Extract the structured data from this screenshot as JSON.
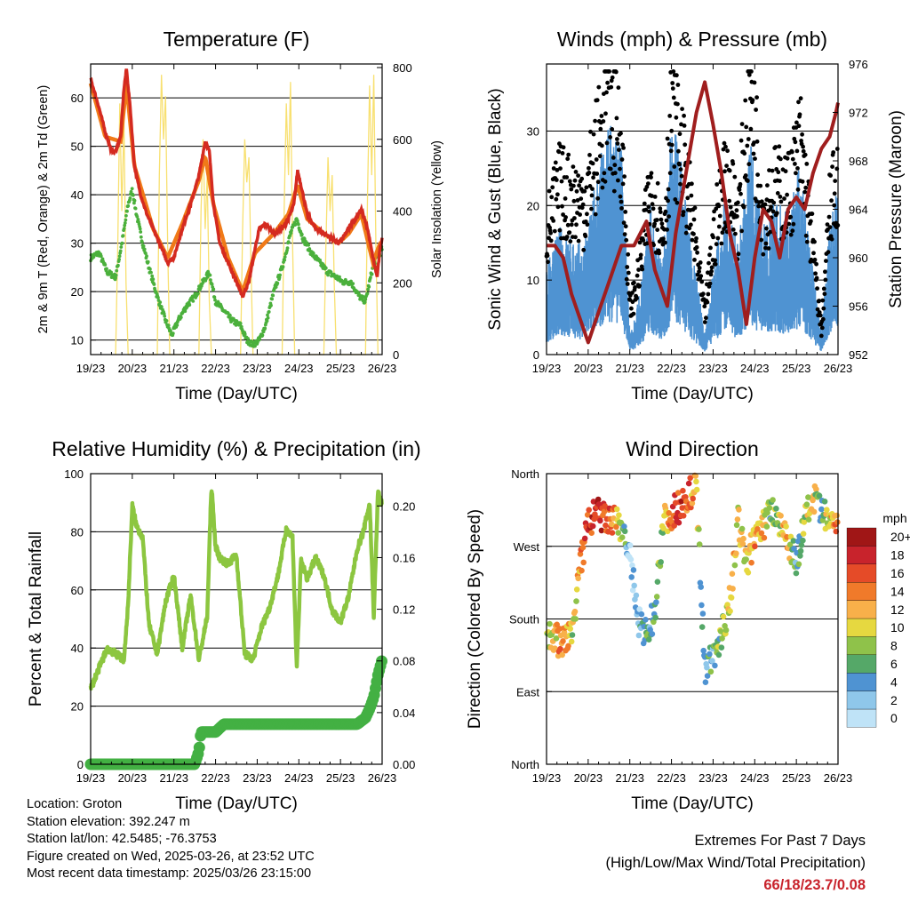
{
  "panels": {
    "temperature": {
      "title": "Temperature (F)",
      "ylabel_left": "2m & 9m T (Red, Orange) & 2m Td (Green)",
      "ylabel_right": "Solar Insolation (Yellow)",
      "xlabel": "Time (Day/UTC)"
    },
    "wind": {
      "title": "Winds (mph) & Pressure (mb)",
      "ylabel_left": "Sonic Wind & Gust (Blue, Black)",
      "ylabel_right": "Station Pressure (Maroon)",
      "xlabel": "Time (Day/UTC)"
    },
    "humidity": {
      "title": "Relative Humidity (%) & Precipitation (in)",
      "ylabel_left": "Percent & Total Rainfall",
      "xlabel": "Time (Day/UTC)"
    },
    "direction": {
      "title": "Wind Direction",
      "ylabel_left": "Direction (Colored By Speed)",
      "xlabel": "Time (Day/UTC)",
      "colorbar_title": "mph"
    }
  },
  "info": {
    "location": "Location: Groton",
    "elevation": "Station elevation: 392.247 m",
    "latlon": "Station lat/lon: 42.5485; -76.3753",
    "created": "Figure created on Wed, 2025-03-26, at 23:52 UTC",
    "recent": "Most recent data timestamp: 2025/03/26 23:15:00"
  },
  "extremes": {
    "line1": "Extremes For Past 7 Days",
    "line2": "(High/Low/Max Wind/Total Precipitation)",
    "values": "66/18/23.7/0.08"
  },
  "colors": {
    "temp_2m": "#d42a20",
    "temp_9m": "#f07a18",
    "dewpoint": "#4bb03c",
    "solar": "#f8e070",
    "wind": "#4f93d2",
    "gust": "#000000",
    "pressure": "#a01e1e",
    "rh": "#8cc640",
    "precip": "#43b043"
  },
  "chart_data": [
    {
      "type": "line",
      "title": "Temperature (F)",
      "xlabel": "Time (Day/UTC)",
      "ylabel": "2m & 9m T (Red, Orange) & 2m Td (Green)",
      "y2label": "Solar Insolation (Yellow)",
      "xticks": [
        "19/23",
        "20/23",
        "21/23",
        "22/23",
        "23/23",
        "24/23",
        "25/23",
        "26/23"
      ],
      "ylim": [
        7,
        67
      ],
      "yticks": [
        10,
        20,
        30,
        40,
        50,
        60
      ],
      "y2lim": [
        0,
        810
      ],
      "y2ticks": [
        0,
        200,
        400,
        600,
        800
      ],
      "grid": "horizontal",
      "series": [
        {
          "name": "2m T",
          "axis": "left",
          "x_days": [
            0,
            0.1,
            0.2,
            0.35,
            0.5,
            0.6,
            0.72,
            0.8,
            0.86,
            0.95,
            1.05,
            1.2,
            1.35,
            1.5,
            1.7,
            1.85,
            2.0,
            2.2,
            2.4,
            2.6,
            2.75,
            2.85,
            2.95,
            3.1,
            3.3,
            3.5,
            3.65,
            3.8,
            3.95,
            4.05,
            4.2,
            4.4,
            4.6,
            4.75,
            4.88,
            4.97,
            5.05,
            5.2,
            5.4,
            5.6,
            5.8,
            5.95,
            6.05,
            6.2,
            6.35,
            6.5,
            6.65,
            6.78,
            6.88,
            6.95,
            7.0
          ],
          "values": [
            64,
            61,
            58,
            53,
            49,
            49,
            52,
            62,
            66,
            58,
            46,
            40,
            36,
            33,
            29,
            26,
            27,
            33,
            38,
            44,
            51,
            49,
            38,
            30,
            26,
            22,
            19,
            22,
            29,
            33,
            34,
            32,
            33,
            35,
            38,
            45,
            42,
            36,
            33,
            32,
            31,
            30,
            31,
            33,
            35,
            37,
            33,
            27,
            23,
            29,
            31
          ]
        },
        {
          "name": "9m T",
          "axis": "left",
          "x_days": [
            0,
            0.35,
            0.72,
            0.86,
            1.05,
            1.5,
            1.85,
            2.2,
            2.6,
            2.75,
            2.95,
            3.3,
            3.65,
            3.95,
            4.4,
            4.75,
            4.97,
            5.2,
            5.6,
            5.95,
            6.2,
            6.5,
            6.78,
            6.95,
            7.0
          ],
          "values": [
            63,
            52,
            51,
            63,
            46,
            33,
            27,
            34,
            43,
            48,
            38,
            27,
            20,
            28,
            32,
            36,
            42,
            35,
            32,
            30,
            32,
            36,
            26,
            30,
            30
          ]
        },
        {
          "name": "2m Td",
          "axis": "left",
          "x_days": [
            0,
            0.2,
            0.4,
            0.6,
            0.75,
            0.9,
            1.0,
            1.1,
            1.25,
            1.4,
            1.6,
            1.8,
            1.95,
            2.1,
            2.3,
            2.5,
            2.7,
            2.85,
            3.0,
            3.2,
            3.4,
            3.6,
            3.75,
            3.9,
            4.05,
            4.2,
            4.4,
            4.6,
            4.8,
            4.95,
            5.1,
            5.3,
            5.5,
            5.7,
            5.9,
            6.05,
            6.25,
            6.45,
            6.6,
            6.75,
            6.85,
            6.95,
            7.0
          ],
          "values": [
            27,
            28,
            24,
            23,
            30,
            38,
            41,
            36,
            30,
            25,
            19,
            14,
            11,
            14,
            17,
            19,
            22,
            24,
            18,
            16,
            14,
            13,
            10,
            9,
            10,
            13,
            20,
            25,
            32,
            35,
            31,
            28,
            26,
            24,
            23,
            22,
            22,
            19,
            18,
            24,
            27,
            28,
            29
          ]
        },
        {
          "name": "Solar Insolation",
          "axis": "right",
          "x_days": [
            0.6,
            0.65,
            0.7,
            0.75,
            0.8,
            0.85,
            0.9,
            1.6,
            1.65,
            1.7,
            1.75,
            1.8,
            1.85,
            1.9,
            2.6,
            2.65,
            2.7,
            2.75,
            2.8,
            2.85,
            2.9,
            3.6,
            3.65,
            3.7,
            3.75,
            3.8,
            3.85,
            3.9,
            4.6,
            4.65,
            4.7,
            4.75,
            4.8,
            4.85,
            4.9,
            5.6,
            5.65,
            5.7,
            5.75,
            5.8,
            5.85,
            5.9,
            6.6,
            6.65,
            6.7,
            6.75,
            6.8,
            6.85,
            6.9
          ],
          "values": [
            0,
            300,
            700,
            400,
            650,
            200,
            0,
            0,
            500,
            780,
            600,
            720,
            300,
            0,
            0,
            400,
            600,
            350,
            500,
            150,
            0,
            0,
            350,
            600,
            480,
            550,
            250,
            0,
            0,
            420,
            700,
            500,
            760,
            300,
            0,
            0,
            300,
            550,
            400,
            500,
            200,
            0,
            0,
            450,
            750,
            500,
            780,
            300,
            0
          ]
        }
      ]
    },
    {
      "type": "scatter",
      "title": "Winds (mph) & Pressure (mb)",
      "xlabel": "Time (Day/UTC)",
      "ylabel": "Sonic Wind & Gust (Blue, Black)",
      "y2label": "Station Pressure (Maroon)",
      "xticks": [
        "19/23",
        "20/23",
        "21/23",
        "22/23",
        "23/23",
        "24/23",
        "25/23",
        "26/23"
      ],
      "ylim": [
        0,
        39
      ],
      "yticks": [
        0,
        10,
        20,
        30
      ],
      "y2lim": [
        952,
        976
      ],
      "y2ticks": [
        952,
        956,
        960,
        964,
        968,
        972,
        976
      ],
      "grid": "horizontal",
      "series": [
        {
          "name": "Sonic Wind",
          "x_days": [
            0,
            0.3,
            0.6,
            0.9,
            1.2,
            1.5,
            1.8,
            2.0,
            2.2,
            2.5,
            2.8,
            3.0,
            3.2,
            3.5,
            3.8,
            4.0,
            4.3,
            4.6,
            4.9,
            5.2,
            5.5,
            5.8,
            6.1,
            6.4,
            6.6,
            6.8,
            7.0
          ],
          "values": [
            8,
            12,
            11,
            10,
            17,
            22,
            20,
            2,
            5,
            14,
            9,
            22,
            19,
            10,
            2,
            8,
            15,
            10,
            20,
            12,
            15,
            13,
            18,
            8,
            2,
            12,
            16
          ]
        },
        {
          "name": "Gust",
          "x_days": [
            0,
            0.3,
            0.6,
            0.9,
            1.2,
            1.5,
            1.8,
            2.0,
            2.2,
            2.5,
            2.8,
            3.0,
            3.2,
            3.5,
            3.8,
            4.0,
            4.3,
            4.6,
            4.9,
            5.2,
            5.5,
            5.8,
            6.1,
            6.4,
            6.6,
            6.8,
            7.0
          ],
          "values": [
            16,
            22,
            21,
            20,
            27,
            33,
            28,
            6,
            10,
            22,
            16,
            31,
            28,
            18,
            5,
            15,
            24,
            18,
            36,
            19,
            22,
            21,
            28,
            14,
            3,
            19,
            24
          ]
        },
        {
          "name": "Station Pressure",
          "x_days": [
            0,
            0.2,
            0.4,
            0.6,
            0.8,
            1.0,
            1.2,
            1.5,
            1.8,
            2.1,
            2.4,
            2.6,
            2.9,
            3.1,
            3.4,
            3.6,
            3.8,
            4.0,
            4.2,
            4.4,
            4.6,
            4.8,
            5.0,
            5.2,
            5.4,
            5.6,
            5.8,
            6.0,
            6.2,
            6.4,
            6.6,
            6.8,
            6.95,
            7.0
          ],
          "values": [
            961,
            961,
            960,
            957,
            955,
            953,
            955,
            958,
            961,
            961,
            963,
            959,
            956,
            962,
            968,
            972,
            974.5,
            971,
            967,
            962,
            959,
            954.5,
            960,
            964,
            963,
            960,
            964,
            965,
            964,
            967,
            969,
            970,
            972,
            972.8
          ]
        }
      ]
    },
    {
      "type": "line",
      "title": "Relative Humidity (%) & Precipitation (in)",
      "xlabel": "Time (Day/UTC)",
      "ylabel": "Percent & Total Rainfall",
      "xticks": [
        "19/23",
        "20/23",
        "21/23",
        "22/23",
        "23/23",
        "24/23",
        "25/23",
        "26/23"
      ],
      "ylim": [
        0,
        100
      ],
      "yticks": [
        0,
        20,
        40,
        60,
        80,
        100
      ],
      "y2lim": [
        0,
        0.225
      ],
      "y2ticks": [
        0.0,
        0.04,
        0.08,
        0.12,
        0.16,
        0.2
      ],
      "grid": "horizontal",
      "series": [
        {
          "name": "Relative Humidity",
          "axis": "left",
          "x_days": [
            0,
            0.2,
            0.4,
            0.6,
            0.8,
            0.9,
            1.0,
            1.1,
            1.25,
            1.4,
            1.6,
            1.8,
            2.0,
            2.2,
            2.4,
            2.6,
            2.8,
            2.9,
            3.0,
            3.1,
            3.3,
            3.5,
            3.7,
            3.9,
            4.1,
            4.3,
            4.5,
            4.7,
            4.85,
            4.95,
            5.05,
            5.2,
            5.4,
            5.6,
            5.8,
            6.0,
            6.2,
            6.4,
            6.55,
            6.7,
            6.8,
            6.9,
            7.0
          ],
          "values": [
            26,
            33,
            40,
            38,
            36,
            55,
            89,
            82,
            78,
            48,
            38,
            56,
            65,
            40,
            58,
            36,
            51,
            96,
            75,
            71,
            69,
            72,
            38,
            36,
            47,
            54,
            65,
            81,
            78,
            33,
            70,
            64,
            71,
            65,
            53,
            49,
            58,
            74,
            80,
            90,
            51,
            94,
            89
          ]
        },
        {
          "name": "Total Precipitation",
          "axis": "right",
          "x_days": [
            0,
            2.5,
            2.6,
            2.65,
            3.0,
            3.2,
            6.0,
            6.4,
            6.6,
            6.7,
            6.8,
            6.9,
            7.0
          ],
          "values": [
            0,
            0,
            0.01,
            0.025,
            0.025,
            0.031,
            0.031,
            0.031,
            0.036,
            0.043,
            0.052,
            0.069,
            0.081
          ]
        }
      ]
    },
    {
      "type": "scatter",
      "title": "Wind Direction",
      "xlabel": "Time (Day/UTC)",
      "ylabel": "Direction (Colored By Speed)",
      "xticks": [
        "19/23",
        "20/23",
        "21/23",
        "22/23",
        "23/23",
        "24/23",
        "25/23",
        "26/23"
      ],
      "yticks": [
        "North",
        "East",
        "South",
        "West",
        "North"
      ],
      "ylim": [
        0,
        360
      ],
      "colorbar": {
        "title": "mph",
        "labels": [
          "0",
          "2",
          "4",
          "6",
          "8",
          "10",
          "12",
          "14",
          "16",
          "18",
          "20+"
        ]
      },
      "x_days": [
        0,
        0.2,
        0.4,
        0.6,
        0.8,
        1.0,
        1.2,
        1.4,
        1.6,
        1.8,
        2.0,
        2.2,
        2.4,
        2.6,
        2.8,
        3.0,
        3.2,
        3.4,
        3.6,
        3.8,
        4.0,
        4.2,
        4.4,
        4.6,
        4.8,
        5.0,
        5.2,
        5.4,
        5.6,
        5.8,
        6.0,
        6.2,
        6.4,
        6.6,
        6.8,
        7.0
      ],
      "direction_deg": [
        165,
        155,
        150,
        160,
        240,
        300,
        310,
        305,
        300,
        295,
        260,
        175,
        160,
        190,
        300,
        310,
        320,
        335,
        340,
        120,
        130,
        160,
        200,
        300,
        250,
        280,
        295,
        320,
        300,
        280,
        250,
        300,
        330,
        310,
        300,
        300
      ],
      "speed_mph": [
        9,
        12,
        16,
        10,
        14,
        17,
        19,
        17,
        16,
        8,
        2,
        4,
        6,
        6,
        10,
        16,
        18,
        16,
        12,
        5,
        6,
        9,
        12,
        12,
        10,
        14,
        12,
        8,
        10,
        13,
        5,
        10,
        12,
        6,
        12,
        16
      ]
    }
  ]
}
